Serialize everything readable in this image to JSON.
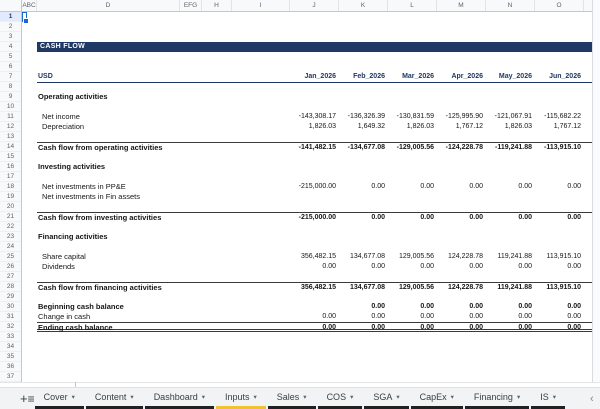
{
  "colors": {
    "navy_accent": "#1f3864",
    "tab_underline_default": "#202124",
    "tab_underline_inputs": "#f1c232",
    "active_tab_sliver": "#2a56c6",
    "selection_blue": "#1967d2"
  },
  "spreadsheet": {
    "column_letters": [
      "ABC",
      "D",
      "EFG",
      "H",
      "I",
      "J",
      "K",
      "L",
      "M",
      "N",
      "O"
    ],
    "row_count": 37,
    "selected_cell_row": "1",
    "title_bar": "CASH FLOW",
    "currency_label": "USD",
    "month_headers": [
      "Jan_2026",
      "Feb_2026",
      "Mar_2026",
      "Apr_2026",
      "May_2026",
      "Jun_2026"
    ],
    "rows": [
      {
        "r": 9,
        "label": "Operating activities",
        "type": "section",
        "values": null
      },
      {
        "r": 11,
        "label": "Net income",
        "type": "item",
        "values": [
          "-143,308.17",
          "-136,326.39",
          "-130,831.59",
          "-125,995.90",
          "-121,067.91",
          "-115,682.22"
        ]
      },
      {
        "r": 12,
        "label": "Depreciation",
        "type": "item",
        "values": [
          "1,826.03",
          "1,649.32",
          "1,826.03",
          "1,767.12",
          "1,826.03",
          "1,767.12"
        ]
      },
      {
        "r": 14,
        "label": "Cash flow from operating activities",
        "type": "total",
        "values": [
          "-141,482.15",
          "-134,677.08",
          "-129,005.56",
          "-124,228.78",
          "-119,241.88",
          "-113,915.10"
        ]
      },
      {
        "r": 16,
        "label": "Investing activities",
        "type": "section",
        "values": null
      },
      {
        "r": 18,
        "label": "Net investments in PP&E",
        "type": "item",
        "values": [
          "-215,000.00",
          "0.00",
          "0.00",
          "0.00",
          "0.00",
          "0.00"
        ]
      },
      {
        "r": 19,
        "label": "Net investments in Fin assets",
        "type": "item",
        "values": [
          "",
          "",
          "",
          "",
          "",
          ""
        ]
      },
      {
        "r": 21,
        "label": "Cash flow from investing activities",
        "type": "total",
        "values": [
          "-215,000.00",
          "0.00",
          "0.00",
          "0.00",
          "0.00",
          "0.00"
        ]
      },
      {
        "r": 23,
        "label": "Financing activities",
        "type": "section",
        "values": null
      },
      {
        "r": 25,
        "label": "Share capital",
        "type": "item",
        "values": [
          "356,482.15",
          "134,677.08",
          "129,005.56",
          "124,228.78",
          "119,241.88",
          "113,915.10"
        ]
      },
      {
        "r": 26,
        "label": "Dividends",
        "type": "item",
        "values": [
          "0.00",
          "0.00",
          "0.00",
          "0.00",
          "0.00",
          "0.00"
        ]
      },
      {
        "r": 28,
        "label": "Cash flow from financing activities",
        "type": "total",
        "values": [
          "356,482.15",
          "134,677.08",
          "129,005.56",
          "124,228.78",
          "119,241.88",
          "113,915.10"
        ]
      },
      {
        "r": 30,
        "label": "Beginning cash balance",
        "type": "bold-item",
        "values": [
          "",
          "0.00",
          "0.00",
          "0.00",
          "0.00",
          "0.00"
        ]
      },
      {
        "r": 31,
        "label": "Change in cash",
        "type": "plain",
        "values": [
          "0.00",
          "0.00",
          "0.00",
          "0.00",
          "0.00",
          "0.00"
        ]
      },
      {
        "r": 32,
        "label": "Ending cash balance",
        "type": "ending",
        "values": [
          "0.00",
          "0.00",
          "0.00",
          "0.00",
          "0.00",
          "0.00"
        ]
      }
    ]
  },
  "tab_bar": {
    "add_sheet_label": "+",
    "all_sheets_label": "≡",
    "dropdown_caret": "▾",
    "nav_back": "‹",
    "nav_forward": "›",
    "tabs": [
      {
        "label": "Cover",
        "underline": "dark"
      },
      {
        "label": "Content",
        "underline": "dark"
      },
      {
        "label": "Dashboard",
        "underline": "dark"
      },
      {
        "label": "Inputs",
        "underline": "yellow"
      },
      {
        "label": "Sales",
        "underline": "dark"
      },
      {
        "label": "COS",
        "underline": "dark"
      },
      {
        "label": "SGA",
        "underline": "dark"
      },
      {
        "label": "CapEx",
        "underline": "dark"
      },
      {
        "label": "Financing",
        "underline": "dark"
      },
      {
        "label": "IS",
        "underline": "dark"
      }
    ]
  }
}
